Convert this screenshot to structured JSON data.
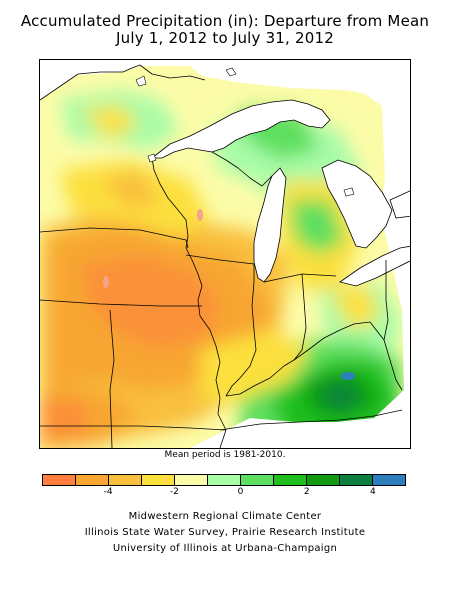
{
  "title": {
    "line1": "Accumulated Precipitation (in): Departure from Mean",
    "line2": "July 1, 2012 to July 31, 2012"
  },
  "mean_note": "Mean period is 1981-2010.",
  "legend": {
    "colors": [
      "#ff7f3f",
      "#f7a631",
      "#f9bf3e",
      "#fce03e",
      "#fcfca8",
      "#a8fca8",
      "#5fdf5f",
      "#1fbf1f",
      "#0f9a0f",
      "#0a7f3f",
      "#2f7fbf"
    ],
    "ticks": [
      {
        "label": "-4",
        "value": -4
      },
      {
        "label": "-2",
        "value": -2
      },
      {
        "label": "0",
        "value": 0
      },
      {
        "label": "2",
        "value": 2
      },
      {
        "label": "4",
        "value": 4
      }
    ],
    "range": [
      -6,
      5
    ]
  },
  "credits": {
    "line1": "Midwestern Regional Climate Center",
    "line2": "Illinois State Water Survey, Prairie Research Institute",
    "line3": "University of Illinois at Urbana-Champaign"
  }
}
